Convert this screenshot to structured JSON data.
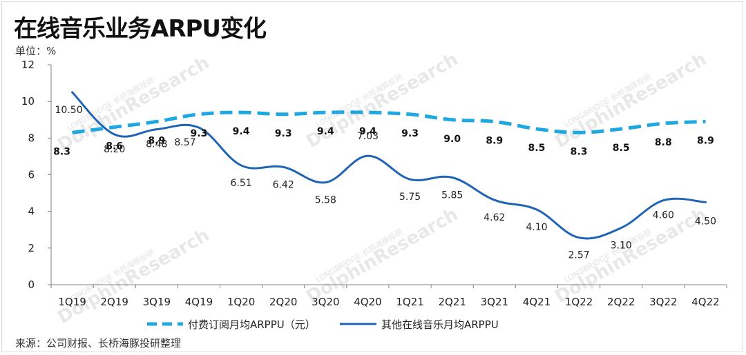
{
  "page": {
    "title": "在线音乐业务ARPU变化",
    "unit": "单位：%",
    "source": "来源：公司财报、长桥海豚投研整理",
    "watermark": "DolphinResearch",
    "watermark_sub": "LONGBRIDGE 长桥海豚投研"
  },
  "chart_data": {
    "type": "line",
    "title": "在线音乐业务ARPU变化",
    "ylabel": "单位：%",
    "xlabel": "",
    "ylim": [
      0,
      12
    ],
    "yticks": [
      0,
      2,
      4,
      6,
      8,
      10,
      12
    ],
    "categories": [
      "1Q19",
      "2Q19",
      "3Q19",
      "4Q19",
      "1Q20",
      "2Q20",
      "3Q20",
      "4Q20",
      "1Q21",
      "2Q21",
      "3Q21",
      "4Q21",
      "1Q22",
      "2Q22",
      "3Q22",
      "4Q22"
    ],
    "series": [
      {
        "name": "付费订阅月均ARPPU（元）",
        "style": "dashed",
        "color": "#1fa8e0",
        "values": [
          8.3,
          8.6,
          8.9,
          9.3,
          9.4,
          9.3,
          9.4,
          9.4,
          9.3,
          9.0,
          8.9,
          8.5,
          8.3,
          8.5,
          8.8,
          8.9
        ],
        "labels": [
          "8.3",
          "8.6",
          "8.9",
          "9.3",
          "9.4",
          "9.3",
          "9.4",
          "9.4",
          "9.3",
          "9.0",
          "8.9",
          "8.5",
          "8.3",
          "8.5",
          "8.8",
          "8.9"
        ]
      },
      {
        "name": "其他在线音乐月均ARPPU",
        "style": "solid",
        "color": "#1f64b4",
        "values": [
          10.5,
          8.2,
          8.48,
          8.57,
          6.51,
          6.42,
          5.58,
          7.03,
          5.75,
          5.85,
          4.62,
          4.1,
          2.57,
          3.1,
          4.6,
          4.5
        ],
        "labels": [
          "10.50",
          "8.20",
          "8.48",
          "8.57",
          "6.51",
          "6.42",
          "5.58",
          "7.03",
          "5.75",
          "5.85",
          "4.62",
          "4.10",
          "2.57",
          "3.10",
          "4.60",
          "4.50"
        ]
      }
    ],
    "legend_position": "bottom",
    "grid": false
  }
}
